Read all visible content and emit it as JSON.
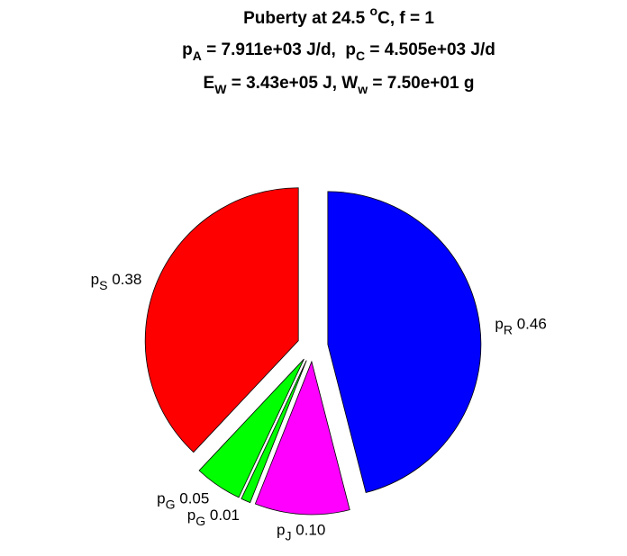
{
  "chart_data": {
    "type": "pie",
    "title": [
      [
        {
          "text": "Puberty at 24.5 "
        },
        {
          "sup": "o"
        },
        {
          "text": "C, f = 1"
        }
      ],
      [
        {
          "text": "p"
        },
        {
          "sub": "A"
        },
        {
          "text": " = 7.911e+03 J/d,  p"
        },
        {
          "sub": "C"
        },
        {
          "text": " = 4.505e+03 J/d"
        }
      ],
      [
        {
          "text": "E"
        },
        {
          "sub": "W"
        },
        {
          "text": " = 3.43e+05 J, W"
        },
        {
          "sub": "w"
        },
        {
          "text": " = 7.50e+01 g"
        }
      ]
    ],
    "categories": [
      {
        "text": "p",
        "sub": "R"
      },
      {
        "text": "p",
        "sub": "J"
      },
      {
        "text": "p",
        "sub": "G"
      },
      {
        "text": "p",
        "sub": "G"
      },
      {
        "text": "p",
        "sub": "S"
      }
    ],
    "values": [
      0.46,
      0.1,
      0.01,
      0.05,
      0.38
    ],
    "value_labels": [
      "0.46",
      "0.10",
      "0.01",
      "0.05",
      "0.38"
    ],
    "colors": [
      "#0000ff",
      "#ff00ff",
      "#00ff00",
      "#00ff00",
      "#ff0000"
    ],
    "explode": true
  }
}
